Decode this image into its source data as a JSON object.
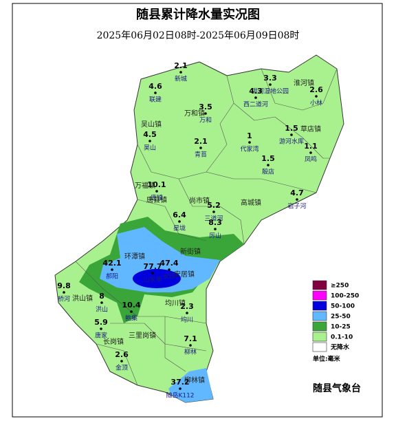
{
  "title": "随县累计降水量实况图",
  "subtitle": "2025年06月02日08时-2025年06月09日08时",
  "stations": [
    {
      "name": "新城",
      "value": 2.1
    },
    {
      "name": "联建",
      "value": 4.6
    },
    {
      "name": "洪河湿地公园",
      "value": 3.3
    },
    {
      "name": "西二道河",
      "value": 4.3
    },
    {
      "name": "小林",
      "value": 2.6
    },
    {
      "name": "万和",
      "value": 3.5
    },
    {
      "name": "吴山",
      "value": 4.5
    },
    {
      "name": "青苔",
      "value": 2.1
    },
    {
      "name": "代家湾",
      "value": 1
    },
    {
      "name": "游河水库",
      "value": 1.5
    },
    {
      "name": "凤鸣",
      "value": 1.1
    },
    {
      "name": "殷店",
      "value": 1.5
    },
    {
      "name": "唐镇",
      "value": 10.1
    },
    {
      "name": "岩子河",
      "value": 4.7
    },
    {
      "name": "三道河",
      "value": 5.2
    },
    {
      "name": "星垅",
      "value": 6.4
    },
    {
      "name": "厉山",
      "value": 8.3
    },
    {
      "name": "郝阳",
      "value": 42.1
    },
    {
      "name": "山家里",
      "value": 77.7
    },
    {
      "name": "安居",
      "value": 47.4
    },
    {
      "name": "桥河",
      "value": 9.8
    },
    {
      "name": "洪山",
      "value": 8
    },
    {
      "name": "鲍集",
      "value": 10.4
    },
    {
      "name": "均川",
      "value": 2.3
    },
    {
      "name": "唐家",
      "value": 5.9
    },
    {
      "name": "柳林",
      "value": 7.1
    },
    {
      "name": "金顶",
      "value": 2.6
    },
    {
      "name": "随岳K112",
      "value": 37.2
    }
  ],
  "towns": [
    "淮河镇",
    "万和镇",
    "吴山镇",
    "草店镇",
    "万福镇",
    "唐县镇",
    "尚市镇",
    "高城镇",
    "环潭镇",
    "新街镇",
    "安居镇",
    "洪山镇",
    "均川镇",
    "三里岗镇",
    "长岗镇",
    "柳林镇"
  ],
  "legend": [
    {
      "label": "≥250",
      "color": "#800040"
    },
    {
      "label": "100-250",
      "color": "#ff00ff"
    },
    {
      "label": "50-100",
      "color": "#0000dd"
    },
    {
      "label": "25-50",
      "color": "#61b8ff"
    },
    {
      "label": "10-25",
      "color": "#3aa63a"
    },
    {
      "label": "0.1-10",
      "color": "#a9f08e"
    },
    {
      "label": "无降水",
      "color": "#ffffff"
    }
  ],
  "unit": "单位:毫米",
  "issuer": "随县气象台"
}
